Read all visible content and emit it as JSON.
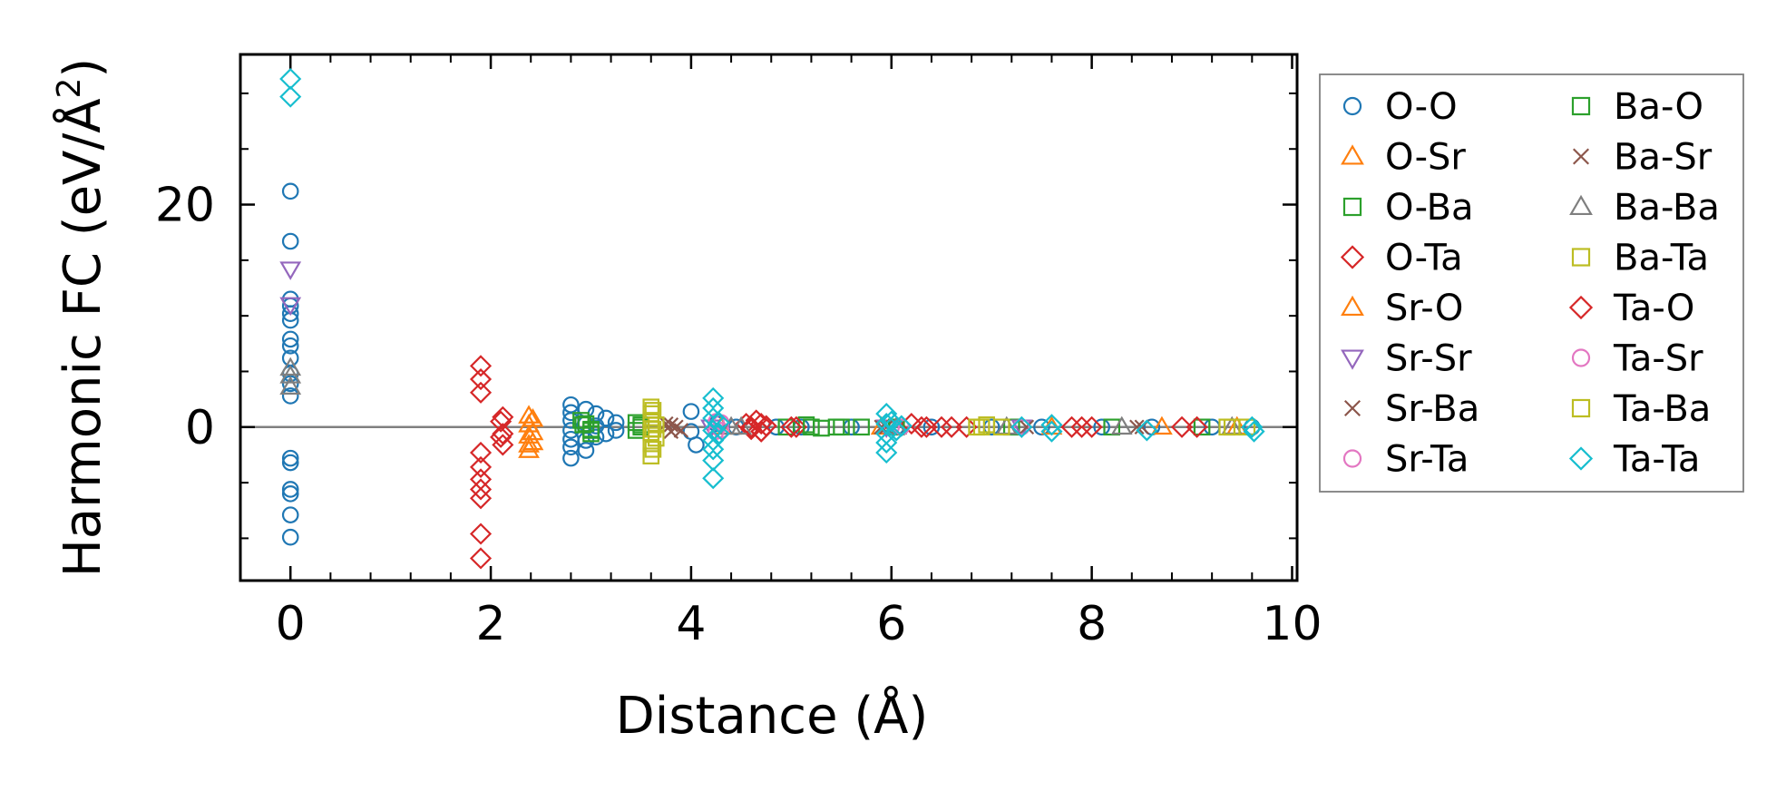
{
  "chart_data": {
    "type": "scatter",
    "title": "",
    "xlabel": "Distance (Å)",
    "ylabel_main": "Harmonic FC (eV/Å",
    "ylabel_sup": "2",
    "ylabel_close": ")",
    "xlim": [
      -0.5,
      10.05
    ],
    "ylim": [
      -13.8,
      33.5
    ],
    "xticks": [
      0,
      2,
      4,
      6,
      8,
      10
    ],
    "yticks": [
      0,
      20
    ],
    "xminor_step": 0.4,
    "yminor_step": 5,
    "zero_line": true,
    "grid": false,
    "legend_position": "outside-right",
    "legend_columns": 2,
    "series": [
      {
        "name": "O-O",
        "marker": "circle",
        "color": "#1f77b4",
        "points": [
          [
            0,
            21.2
          ],
          [
            0,
            16.7
          ],
          [
            0,
            11.5
          ],
          [
            0,
            10.9
          ],
          [
            0,
            10.2
          ],
          [
            0,
            9.6
          ],
          [
            0,
            7.9
          ],
          [
            0,
            7.3
          ],
          [
            0,
            6.2
          ],
          [
            0,
            4.8
          ],
          [
            0,
            3.9
          ],
          [
            0,
            2.8
          ],
          [
            0,
            -2.8
          ],
          [
            0,
            -3.2
          ],
          [
            0,
            -5.6
          ],
          [
            0,
            -6.0
          ],
          [
            0,
            -7.9
          ],
          [
            0,
            -9.9
          ],
          [
            2.8,
            2.0
          ],
          [
            2.8,
            1.3
          ],
          [
            2.8,
            0.6
          ],
          [
            2.8,
            -0.3
          ],
          [
            2.8,
            -1.1
          ],
          [
            2.8,
            -1.8
          ],
          [
            2.8,
            -2.8
          ],
          [
            2.95,
            1.6
          ],
          [
            2.95,
            0.3
          ],
          [
            2.95,
            -1.2
          ],
          [
            2.95,
            -2.1
          ],
          [
            3.05,
            1.2
          ],
          [
            3.05,
            0.1
          ],
          [
            3.05,
            -0.9
          ],
          [
            3.15,
            0.8
          ],
          [
            3.15,
            -0.6
          ],
          [
            3.25,
            0.4
          ],
          [
            3.25,
            -0.3
          ],
          [
            4.0,
            1.4
          ],
          [
            4.0,
            -0.4
          ],
          [
            4.05,
            -1.6
          ],
          [
            4.25,
            0.3
          ],
          [
            4.45,
            0.0
          ],
          [
            4.85,
            0.0
          ],
          [
            5.1,
            0.0
          ],
          [
            5.6,
            0.0
          ],
          [
            6.05,
            0.0
          ],
          [
            6.4,
            0.0
          ],
          [
            7.0,
            0.0
          ],
          [
            7.5,
            0.0
          ],
          [
            8.1,
            0.0
          ],
          [
            8.6,
            0.0
          ],
          [
            9.2,
            0.0
          ],
          [
            9.6,
            0.0
          ]
        ]
      },
      {
        "name": "O-Sr",
        "marker": "triangle-up",
        "color": "#ff7f0e",
        "points": [
          [
            2.38,
            1.0
          ],
          [
            2.38,
            0.2
          ],
          [
            2.38,
            -0.8
          ],
          [
            2.38,
            -1.6
          ],
          [
            2.38,
            -2.1
          ],
          [
            4.3,
            0.0
          ],
          [
            5.9,
            0.0
          ],
          [
            7.6,
            0.0
          ],
          [
            8.7,
            0.0
          ],
          [
            9.45,
            0.0
          ]
        ]
      },
      {
        "name": "O-Ba",
        "marker": "square",
        "color": "#2ca02c",
        "points": [
          [
            2.9,
            0.6
          ],
          [
            2.95,
            0.3
          ],
          [
            3.0,
            -0.2
          ],
          [
            3.0,
            -0.6
          ],
          [
            3.45,
            0.4
          ],
          [
            3.45,
            -0.3
          ],
          [
            3.5,
            0.0
          ],
          [
            4.95,
            0.0
          ],
          [
            5.15,
            0.2
          ],
          [
            5.3,
            -0.1
          ],
          [
            5.5,
            0.0
          ],
          [
            5.7,
            0.0
          ],
          [
            7.2,
            0.0
          ],
          [
            8.2,
            0.0
          ],
          [
            9.1,
            0.0
          ]
        ]
      },
      {
        "name": "O-Ta",
        "marker": "diamond",
        "color": "#d62728",
        "points": [
          [
            1.9,
            5.5
          ],
          [
            1.9,
            4.3
          ],
          [
            1.9,
            3.1
          ],
          [
            1.9,
            -2.3
          ],
          [
            1.9,
            -3.6
          ],
          [
            1.9,
            -4.7
          ],
          [
            1.9,
            -5.6
          ],
          [
            1.9,
            -6.4
          ],
          [
            1.9,
            -9.6
          ],
          [
            1.9,
            -11.8
          ],
          [
            2.12,
            0.9
          ],
          [
            2.12,
            -0.6
          ],
          [
            2.12,
            -1.6
          ],
          [
            4.55,
            0.3
          ],
          [
            4.6,
            -0.2
          ],
          [
            4.65,
            0.6
          ],
          [
            4.7,
            -0.4
          ],
          [
            4.75,
            0.1
          ],
          [
            5.05,
            0.0
          ],
          [
            6.2,
            0.3
          ],
          [
            6.35,
            0.0
          ],
          [
            6.6,
            0.0
          ],
          [
            6.75,
            0.0
          ],
          [
            7.8,
            0.0
          ],
          [
            8.0,
            0.0
          ],
          [
            8.9,
            0.0
          ],
          [
            9.05,
            0.0
          ]
        ]
      },
      {
        "name": "Sr-O",
        "marker": "triangle-up",
        "color": "#ff7f0e",
        "points": [
          [
            2.42,
            0.7
          ],
          [
            2.42,
            -0.5
          ],
          [
            2.42,
            -1.4
          ]
        ]
      },
      {
        "name": "Sr-Sr",
        "marker": "triangle-down",
        "color": "#9467bd",
        "points": [
          [
            0,
            14.2
          ],
          [
            0,
            11.0
          ],
          [
            4.2,
            0.0
          ],
          [
            5.95,
            0.0
          ],
          [
            7.3,
            0.0
          ]
        ]
      },
      {
        "name": "Sr-Ba",
        "marker": "x",
        "color": "#8c564b",
        "points": [
          [
            3.75,
            0.3
          ],
          [
            3.8,
            -0.4
          ],
          [
            3.85,
            0.0
          ],
          [
            5.95,
            0.0
          ],
          [
            7.35,
            0.0
          ],
          [
            8.5,
            0.0
          ]
        ]
      },
      {
        "name": "Sr-Ta",
        "marker": "circle",
        "color": "#e377c2",
        "points": [
          [
            4.3,
            0.4
          ],
          [
            4.3,
            -0.3
          ],
          [
            6.0,
            0.0
          ],
          [
            7.3,
            0.0
          ]
        ]
      },
      {
        "name": "Ba-O",
        "marker": "square",
        "color": "#2ca02c",
        "points": [
          [
            2.92,
            0.2
          ],
          [
            3.0,
            -0.3
          ],
          [
            3.5,
            0.2
          ],
          [
            5.2,
            0.0
          ],
          [
            5.45,
            0.0
          ],
          [
            6.05,
            0.0
          ]
        ]
      },
      {
        "name": "Ba-Sr",
        "marker": "x",
        "color": "#8c564b",
        "points": [
          [
            3.8,
            0.2
          ],
          [
            3.9,
            -0.3
          ],
          [
            5.9,
            0.0
          ],
          [
            8.45,
            0.0
          ]
        ]
      },
      {
        "name": "Ba-Ba",
        "marker": "triangle-up",
        "color": "#7f7f7f",
        "points": [
          [
            0,
            5.3
          ],
          [
            0,
            4.6
          ],
          [
            0,
            3.6
          ],
          [
            4.4,
            0.0
          ],
          [
            4.5,
            0.0
          ],
          [
            6.05,
            0.0
          ],
          [
            7.15,
            0.0
          ],
          [
            8.3,
            0.0
          ],
          [
            9.4,
            0.0
          ]
        ]
      },
      {
        "name": "Ba-Ta",
        "marker": "square",
        "color": "#bcbd22",
        "points": [
          [
            3.6,
            1.8
          ],
          [
            3.6,
            1.2
          ],
          [
            3.6,
            0.6
          ],
          [
            3.6,
            -0.5
          ],
          [
            3.6,
            -1.5
          ],
          [
            3.6,
            -2.6
          ],
          [
            3.65,
            0.2
          ],
          [
            3.65,
            -1.0
          ],
          [
            6.85,
            0.0
          ],
          [
            6.95,
            0.2
          ],
          [
            7.1,
            0.0
          ],
          [
            9.4,
            0.0
          ],
          [
            9.55,
            0.0
          ]
        ]
      },
      {
        "name": "Ta-O",
        "marker": "diamond",
        "color": "#d62728",
        "points": [
          [
            2.1,
            0.5
          ],
          [
            2.1,
            -0.9
          ],
          [
            4.6,
            0.0
          ],
          [
            4.7,
            0.3
          ],
          [
            4.7,
            -0.4
          ],
          [
            5.0,
            0.0
          ],
          [
            6.3,
            0.0
          ],
          [
            6.5,
            0.0
          ],
          [
            7.9,
            0.0
          ]
        ]
      },
      {
        "name": "Ta-Sr",
        "marker": "circle",
        "color": "#e377c2",
        "points": [
          [
            4.25,
            0.5
          ],
          [
            4.25,
            -0.4
          ],
          [
            6.1,
            0.0
          ]
        ]
      },
      {
        "name": "Ta-Ba",
        "marker": "square",
        "color": "#bcbd22",
        "points": [
          [
            3.62,
            1.5
          ],
          [
            3.62,
            -0.2
          ],
          [
            3.62,
            -2.0
          ],
          [
            6.9,
            0.0
          ],
          [
            9.35,
            0.0
          ]
        ]
      },
      {
        "name": "Ta-Ta",
        "marker": "diamond",
        "color": "#17becf",
        "points": [
          [
            0,
            31.3
          ],
          [
            0,
            29.7
          ],
          [
            4.22,
            2.6
          ],
          [
            4.22,
            1.7
          ],
          [
            4.22,
            0.8
          ],
          [
            4.22,
            -0.3
          ],
          [
            4.22,
            -1.2
          ],
          [
            4.22,
            -2.0
          ],
          [
            4.22,
            -3.0
          ],
          [
            4.22,
            -4.6
          ],
          [
            4.28,
            0.4
          ],
          [
            4.28,
            -0.6
          ],
          [
            5.95,
            1.2
          ],
          [
            5.95,
            0.3
          ],
          [
            5.95,
            -0.6
          ],
          [
            5.95,
            -1.4
          ],
          [
            5.95,
            -2.3
          ],
          [
            6.0,
            0.5
          ],
          [
            6.05,
            -0.3
          ],
          [
            6.1,
            0.1
          ],
          [
            7.3,
            0.0
          ],
          [
            7.6,
            -0.4
          ],
          [
            7.6,
            0.2
          ],
          [
            8.55,
            -0.3
          ],
          [
            9.6,
            0.0
          ],
          [
            9.62,
            -0.4
          ]
        ]
      }
    ]
  }
}
